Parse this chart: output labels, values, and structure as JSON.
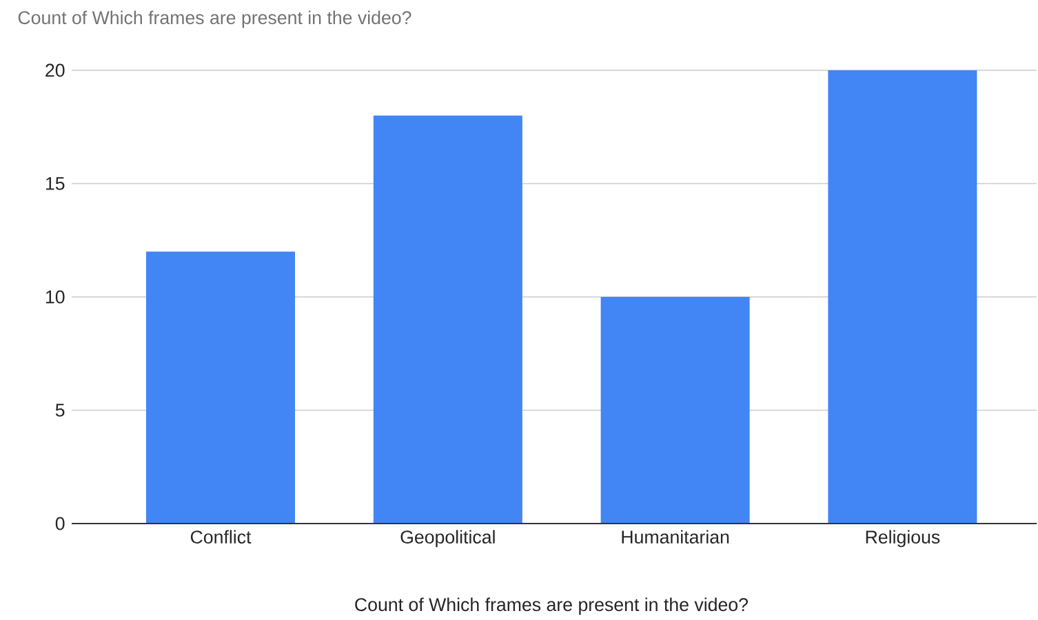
{
  "chart_data": {
    "type": "bar",
    "title": "Count of Which frames are present in the video?",
    "xlabel": "Count of Which frames are present in the video?",
    "categories": [
      "Conflict",
      "Geopolitical",
      "Humanitarian",
      "Religious"
    ],
    "values": [
      12,
      18,
      10,
      20
    ],
    "color": "#4285f4",
    "ylim": [
      0,
      20
    ],
    "yticks": [
      0,
      5,
      10,
      15,
      20
    ],
    "grid": "y"
  }
}
